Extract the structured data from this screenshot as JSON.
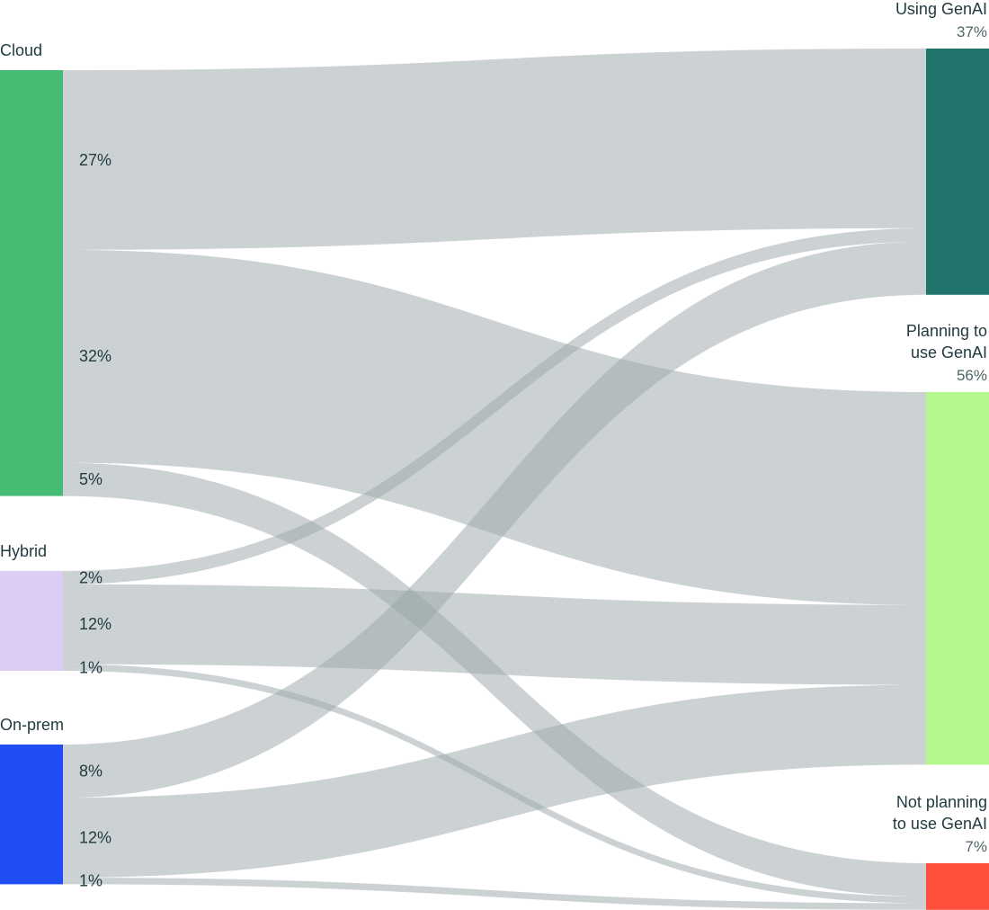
{
  "chart_data": {
    "type": "sankey",
    "sources": [
      {
        "id": "cloud",
        "label": "Cloud",
        "color": "#45bb74"
      },
      {
        "id": "hybrid",
        "label": "Hybrid",
        "color": "#ddcdf4"
      },
      {
        "id": "onprem",
        "label": "On-prem",
        "color": "#1f4ef5"
      }
    ],
    "targets": [
      {
        "id": "using",
        "label_lines": [
          "Using GenAI"
        ],
        "value_label": "37%",
        "color": "#21756c"
      },
      {
        "id": "planning",
        "label_lines": [
          "Planning to",
          "use GenAI"
        ],
        "value_label": "56%",
        "color": "#b4f78c"
      },
      {
        "id": "not",
        "label_lines": [
          "Not planning",
          "to use GenAI"
        ],
        "value_label": "7%",
        "color": "#ff4f3a"
      }
    ],
    "flows": [
      {
        "source": "cloud",
        "target": "using",
        "value": 27,
        "label": "27%"
      },
      {
        "source": "cloud",
        "target": "planning",
        "value": 32,
        "label": "32%"
      },
      {
        "source": "cloud",
        "target": "not",
        "value": 5,
        "label": "5%"
      },
      {
        "source": "hybrid",
        "target": "using",
        "value": 2,
        "label": "2%"
      },
      {
        "source": "hybrid",
        "target": "planning",
        "value": 12,
        "label": "12%"
      },
      {
        "source": "hybrid",
        "target": "not",
        "value": 1,
        "label": "1%"
      },
      {
        "source": "onprem",
        "target": "using",
        "value": 8,
        "label": "8%"
      },
      {
        "source": "onprem",
        "target": "planning",
        "value": 12,
        "label": "12%"
      },
      {
        "source": "onprem",
        "target": "not",
        "value": 1,
        "label": "1%"
      }
    ],
    "colors": {
      "flow": "#9aa6a9"
    }
  }
}
